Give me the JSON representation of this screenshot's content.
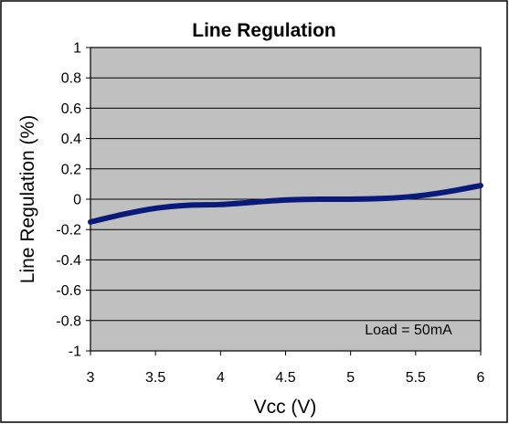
{
  "chart_data": {
    "type": "line",
    "title": "Line Regulation",
    "xlabel": "Vcc (V)",
    "ylabel": "Line Regulation (%)",
    "xlim": [
      3,
      6
    ],
    "ylim": [
      -1,
      1
    ],
    "x_ticks": [
      "3",
      "3.5",
      "4",
      "4.5",
      "5",
      "5.5",
      "6"
    ],
    "y_ticks": [
      "1",
      "0.8",
      "0.6",
      "0.4",
      "0.2",
      "0",
      "-0.2",
      "-0.4",
      "-0.6",
      "-0.8",
      "-1"
    ],
    "grid": true,
    "annotation": "Load = 50mA",
    "series": [
      {
        "color": "#0a1a7a",
        "x": [
          3.0,
          3.25,
          3.5,
          3.75,
          4.0,
          4.25,
          4.5,
          4.75,
          5.0,
          5.25,
          5.5,
          5.75,
          6.0
        ],
        "y": [
          -0.15,
          -0.1,
          -0.06,
          -0.04,
          -0.035,
          -0.02,
          -0.005,
          0.0,
          0.0,
          0.005,
          0.02,
          0.05,
          0.09
        ]
      }
    ],
    "plot_background": "#c0c0c0"
  }
}
